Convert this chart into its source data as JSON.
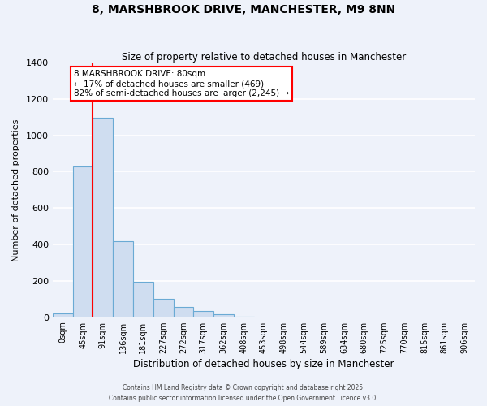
{
  "title": "8, MARSHBROOK DRIVE, MANCHESTER, M9 8NN",
  "subtitle": "Size of property relative to detached houses in Manchester",
  "xlabel": "Distribution of detached houses by size in Manchester",
  "ylabel": "Number of detached properties",
  "bar_color": "#cfddf0",
  "bar_edge_color": "#6aaad4",
  "background_color": "#eef2fa",
  "grid_color": "#ffffff",
  "categories": [
    "0sqm",
    "45sqm",
    "91sqm",
    "136sqm",
    "181sqm",
    "227sqm",
    "272sqm",
    "317sqm",
    "362sqm",
    "408sqm",
    "453sqm",
    "498sqm",
    "544sqm",
    "589sqm",
    "634sqm",
    "680sqm",
    "725sqm",
    "770sqm",
    "815sqm",
    "861sqm",
    "906sqm"
  ],
  "bar_values": [
    20,
    830,
    1095,
    420,
    195,
    100,
    55,
    35,
    15,
    5,
    0,
    0,
    0,
    0,
    0,
    0,
    0,
    0,
    0,
    0,
    0
  ],
  "ylim": [
    0,
    1400
  ],
  "yticks": [
    0,
    200,
    400,
    600,
    800,
    1000,
    1200,
    1400
  ],
  "red_line_x": 2,
  "annotation_title": "8 MARSHBROOK DRIVE: 80sqm",
  "annotation_line1": "← 17% of detached houses are smaller (469)",
  "annotation_line2": "82% of semi-detached houses are larger (2,245) →",
  "footer_line1": "Contains HM Land Registry data © Crown copyright and database right 2025.",
  "footer_line2": "Contains public sector information licensed under the Open Government Licence v3.0."
}
